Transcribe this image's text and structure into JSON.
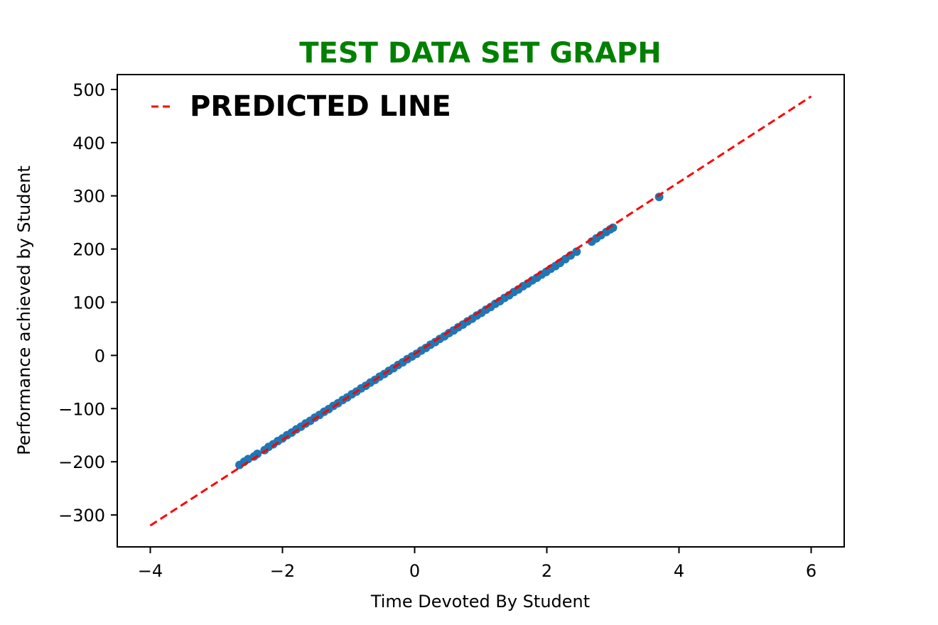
{
  "chart_data": {
    "type": "scatter",
    "title": "TEST DATA SET GRAPH",
    "title_color": "#008000",
    "xlabel": "Time Devoted By Student",
    "ylabel": "Performance achieved by Student",
    "xlim": [
      -4.5,
      6.5
    ],
    "ylim": [
      -360,
      528
    ],
    "xticks": [
      -4,
      -2,
      0,
      2,
      4,
      6
    ],
    "yticks": [
      -300,
      -200,
      -100,
      0,
      100,
      200,
      300,
      400,
      500
    ],
    "grid": false,
    "legend": {
      "placement": "top-left",
      "entries": [
        {
          "label": "PREDICTED LINE",
          "style": "dashed",
          "color": "#ff0000"
        }
      ]
    },
    "series": [
      {
        "type": "scatter",
        "color": "#1f77b4",
        "x": [
          -2.65,
          -2.58,
          -2.52,
          -2.43,
          -2.38,
          -2.27,
          -2.21,
          -2.14,
          -2.07,
          -2.0,
          -1.93,
          -1.86,
          -1.79,
          -1.72,
          -1.65,
          -1.58,
          -1.51,
          -1.44,
          -1.37,
          -1.3,
          -1.23,
          -1.16,
          -1.09,
          -1.02,
          -0.95,
          -0.88,
          -0.81,
          -0.74,
          -0.67,
          -0.6,
          -0.53,
          -0.46,
          -0.39,
          -0.32,
          -0.25,
          -0.18,
          -0.11,
          -0.04,
          0.03,
          0.1,
          0.17,
          0.24,
          0.31,
          0.38,
          0.45,
          0.52,
          0.59,
          0.66,
          0.73,
          0.8,
          0.87,
          0.94,
          1.01,
          1.08,
          1.15,
          1.22,
          1.29,
          1.36,
          1.43,
          1.5,
          1.57,
          1.64,
          1.71,
          1.78,
          1.85,
          1.92,
          1.99,
          2.06,
          2.13,
          2.2,
          2.28,
          2.36,
          2.45,
          2.68,
          2.75,
          2.82,
          2.9,
          2.96,
          3.0,
          3.7
        ],
        "y": [
          -206,
          -200,
          -195,
          -190,
          -185,
          -178,
          -172,
          -167,
          -161,
          -156,
          -150,
          -145,
          -139,
          -134,
          -128,
          -123,
          -117,
          -112,
          -106,
          -101,
          -95,
          -90,
          -84,
          -79,
          -73,
          -68,
          -62,
          -57,
          -51,
          -46,
          -40,
          -35,
          -29,
          -24,
          -18,
          -13,
          -7,
          -2,
          3,
          9,
          14,
          20,
          25,
          31,
          36,
          42,
          47,
          53,
          58,
          64,
          69,
          75,
          80,
          86,
          91,
          97,
          102,
          108,
          113,
          119,
          124,
          130,
          135,
          141,
          146,
          152,
          157,
          163,
          168,
          174,
          181,
          188,
          195,
          214,
          220,
          226,
          232,
          237,
          240,
          298
        ]
      },
      {
        "type": "line",
        "name": "PREDICTED LINE",
        "style": "dashed",
        "color": "#ff0000",
        "x": [
          -4,
          6
        ],
        "y": [
          -320,
          487
        ]
      }
    ]
  }
}
